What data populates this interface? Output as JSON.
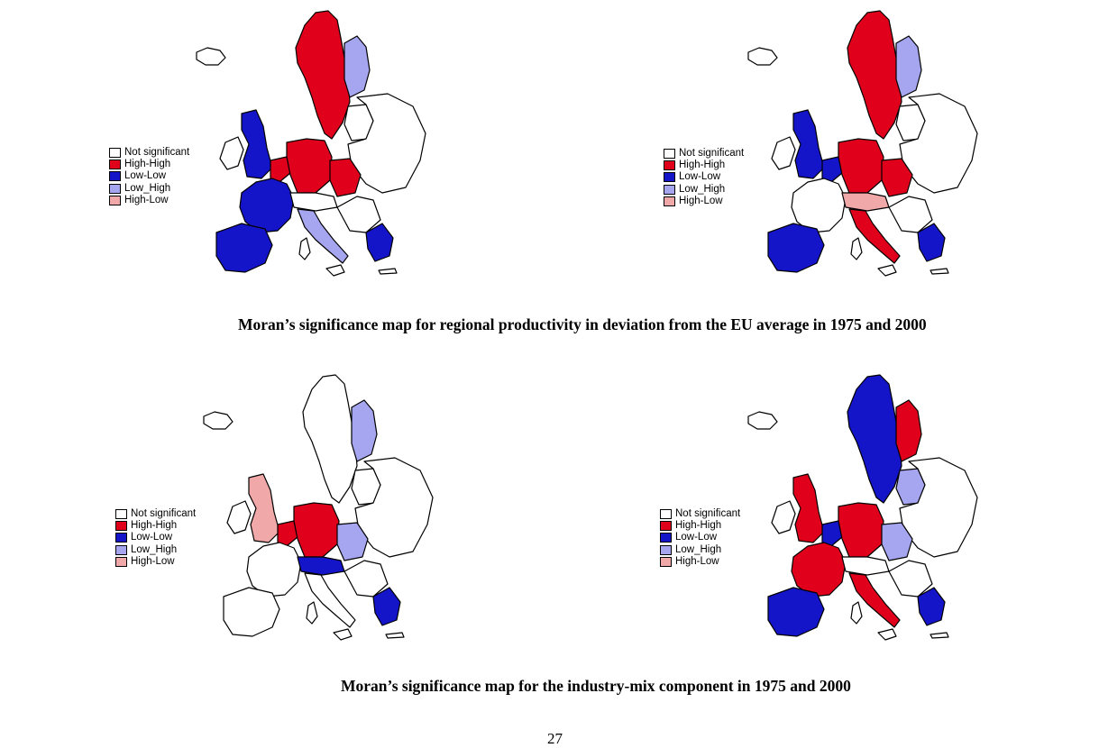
{
  "legend_colors": {
    "not_significant": "#ffffff",
    "high_high": "#e0001b",
    "low_low": "#1414c8",
    "low_high": "#a6a6f0",
    "high_low": "#f0a8a8"
  },
  "legend_labels": [
    "Not significant",
    "High-High",
    "Low-Low",
    "Low_High",
    "High-Low"
  ],
  "captions": {
    "top": "Moran’s significance map for regional productivity in deviation from the EU average in 1975 and 2000",
    "bottom": "Moran’s significance map for the industry-mix component in 1975 and 2000"
  },
  "page_number": "27",
  "maps": [
    {
      "id": "productivity-1975",
      "dominant": [
        "high_high",
        "low_low"
      ]
    },
    {
      "id": "productivity-2000",
      "dominant": [
        "high_high",
        "low_low"
      ]
    },
    {
      "id": "industry-mix-1975",
      "dominant": [
        "high_high",
        "low_high"
      ]
    },
    {
      "id": "industry-mix-2000",
      "dominant": [
        "high_high",
        "low_low"
      ]
    }
  ]
}
